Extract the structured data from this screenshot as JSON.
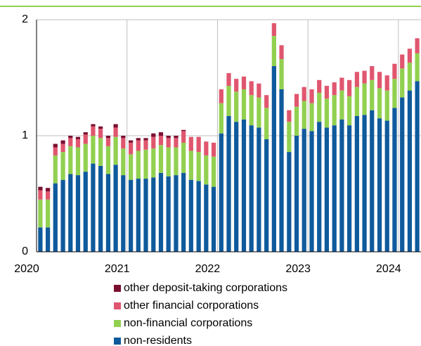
{
  "chart_data": {
    "type": "stacked-bar",
    "x": [
      2020.042,
      2020.125,
      2020.208,
      2020.292,
      2020.375,
      2020.458,
      2020.542,
      2020.625,
      2020.708,
      2020.792,
      2020.875,
      2020.958,
      2021.042,
      2021.125,
      2021.208,
      2021.292,
      2021.375,
      2021.458,
      2021.542,
      2021.625,
      2021.708,
      2021.792,
      2021.875,
      2021.958,
      2022.042,
      2022.125,
      2022.208,
      2022.292,
      2022.375,
      2022.458,
      2022.542,
      2022.625,
      2022.708,
      2022.792,
      2022.875,
      2022.958,
      2023.042,
      2023.125,
      2023.208,
      2023.292,
      2023.375,
      2023.458,
      2023.542,
      2023.625,
      2023.708,
      2023.792,
      2023.875,
      2023.958,
      2024.042,
      2024.125,
      2024.208
    ],
    "xlim": [
      2020,
      2024.25
    ],
    "xticks": [
      2020,
      2021,
      2022,
      2023,
      2024
    ],
    "ylim": [
      0,
      2
    ],
    "yticks": [
      0,
      1,
      2
    ],
    "grid": true,
    "legend": "bottom",
    "series": [
      {
        "name": "non-residents",
        "color": "#0f5a9c",
        "values": [
          0.21,
          0.21,
          0.59,
          0.62,
          0.67,
          0.66,
          0.69,
          0.76,
          0.74,
          0.67,
          0.75,
          0.66,
          0.62,
          0.63,
          0.63,
          0.64,
          0.68,
          0.65,
          0.66,
          0.68,
          0.62,
          0.61,
          0.58,
          0.56,
          1.02,
          1.17,
          1.12,
          1.14,
          1.09,
          1.07,
          0.97,
          1.6,
          1.4,
          0.86,
          1.0,
          1.06,
          1.04,
          1.12,
          1.07,
          1.09,
          1.14,
          1.09,
          1.17,
          1.18,
          1.22,
          1.15,
          1.13,
          1.24,
          1.33,
          1.39,
          1.47
        ]
      },
      {
        "name": "non-financial corporations",
        "color": "#92d050",
        "values": [
          0.24,
          0.24,
          0.24,
          0.24,
          0.24,
          0.24,
          0.24,
          0.24,
          0.24,
          0.24,
          0.24,
          0.23,
          0.22,
          0.24,
          0.25,
          0.25,
          0.24,
          0.25,
          0.24,
          0.26,
          0.25,
          0.25,
          0.25,
          0.26,
          0.26,
          0.26,
          0.26,
          0.26,
          0.26,
          0.26,
          0.27,
          0.26,
          0.26,
          0.26,
          0.25,
          0.24,
          0.24,
          0.25,
          0.25,
          0.26,
          0.25,
          0.25,
          0.25,
          0.27,
          0.26,
          0.26,
          0.26,
          0.25,
          0.25,
          0.24,
          0.24
        ]
      },
      {
        "name": "other financial corporations",
        "color": "#e0566f",
        "values": [
          0.08,
          0.07,
          0.07,
          0.07,
          0.07,
          0.07,
          0.08,
          0.08,
          0.08,
          0.07,
          0.08,
          0.09,
          0.1,
          0.09,
          0.08,
          0.1,
          0.08,
          0.08,
          0.08,
          0.1,
          0.12,
          0.13,
          0.12,
          0.12,
          0.12,
          0.11,
          0.11,
          0.11,
          0.12,
          0.12,
          0.11,
          0.11,
          0.12,
          0.1,
          0.11,
          0.12,
          0.12,
          0.11,
          0.11,
          0.11,
          0.11,
          0.14,
          0.13,
          0.11,
          0.12,
          0.14,
          0.13,
          0.13,
          0.12,
          0.12,
          0.13
        ]
      },
      {
        "name": "other deposit-taking corporations",
        "color": "#7a0f30",
        "values": [
          0.03,
          0.03,
          0.03,
          0.03,
          0.02,
          0.02,
          0.02,
          0.02,
          0.02,
          0.02,
          0.03,
          0.02,
          0.02,
          0.02,
          0.02,
          0.03,
          0.03,
          0.02,
          0.02,
          0.01,
          0,
          0,
          0,
          0,
          0,
          0,
          0,
          0,
          0,
          0,
          0,
          0,
          0,
          0,
          0,
          0,
          0,
          0,
          0,
          0,
          0,
          0,
          0,
          0,
          0,
          0,
          0,
          0,
          0,
          0,
          0
        ]
      }
    ]
  }
}
